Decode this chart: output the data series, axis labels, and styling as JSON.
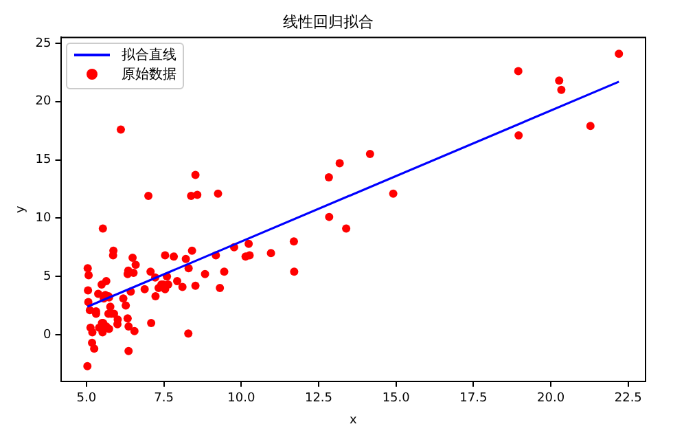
{
  "chart_data": {
    "type": "scatter",
    "title": "线性回归拟合",
    "xlabel": "x",
    "ylabel": "y",
    "legend": "top left",
    "grid": false,
    "xlim": [
      4.17,
      23.06
    ],
    "ylim": [
      -4.0,
      25.5
    ],
    "xticks": [
      {
        "value": 5,
        "label": "5.0"
      },
      {
        "value": 7.5,
        "label": "7.5"
      },
      {
        "value": 10,
        "label": "10.0"
      },
      {
        "value": 12.5,
        "label": "12.5"
      },
      {
        "value": 15,
        "label": "15.0"
      },
      {
        "value": 17.5,
        "label": "17.5"
      },
      {
        "value": 20,
        "label": "20.0"
      },
      {
        "value": 22.5,
        "label": "22.5"
      }
    ],
    "yticks": [
      0,
      5,
      10,
      15,
      20,
      25
    ],
    "series": [
      {
        "name": "拟合直线",
        "type": "line",
        "color": "#0000ff",
        "line_style": "solid",
        "x": [
          5.03,
          22.2
        ],
        "values": [
          2.4,
          21.7
        ]
      },
      {
        "name": "原始数据",
        "marker": "circle",
        "color": "#ff0000",
        "x": [
          6.11,
          5.53,
          8.52,
          7.0,
          5.86,
          8.38,
          7.48,
          8.58,
          6.49,
          5.05,
          5.71,
          14.16,
          5.73,
          8.41,
          5.64,
          5.38,
          5.13,
          6.43,
          7.07,
          6.19,
          20.27,
          5.49,
          6.33,
          5.56,
          18.95,
          12.83,
          10.96,
          13.18,
          22.2,
          5.25,
          6.59,
          9.25,
          5.89,
          8.21,
          7.93,
          8.1,
          5.61,
          12.84,
          6.35,
          5.41,
          6.88,
          11.71,
          5.77,
          7.82,
          7.09,
          5.07,
          5.8,
          11.7,
          5.54,
          7.54,
          5.31,
          7.42,
          7.6,
          6.33,
          6.36,
          6.27,
          5.64,
          9.31,
          9.45,
          8.83,
          5.18,
          21.28,
          14.91,
          18.96,
          7.22,
          8.3,
          10.24,
          5.5,
          20.34,
          10.14,
          7.33,
          6.01,
          7.23,
          5.03,
          6.55,
          7.54,
          5.04,
          10.27,
          5.11,
          5.73,
          5.19,
          6.36,
          9.77,
          6.52,
          8.52,
          9.18,
          6.0,
          5.52,
          5.06,
          5.71,
          7.64,
          5.87,
          5.31,
          8.29,
          13.39
        ],
        "values": [
          17.6,
          9.1,
          13.7,
          11.9,
          6.8,
          11.9,
          4.3,
          12.0,
          6.6,
          3.8,
          3.3,
          15.5,
          3.2,
          7.2,
          0.7,
          3.5,
          0.6,
          3.7,
          5.4,
          3.1,
          21.8,
          4.3,
          5.2,
          3.1,
          22.6,
          13.5,
          7.0,
          14.7,
          24.1,
          -1.2,
          6.0,
          12.1,
          1.8,
          6.5,
          4.6,
          4.1,
          3.4,
          10.1,
          5.5,
          0.6,
          3.9,
          5.4,
          2.4,
          6.7,
          1.0,
          5.1,
          1.8,
          8.0,
          1.0,
          6.8,
          1.8,
          4.3,
          5.0,
          1.4,
          -1.4,
          2.5,
          4.6,
          4.0,
          5.4,
          5.2,
          -0.7,
          17.9,
          12.1,
          17.1,
          4.9,
          5.7,
          7.8,
          1.0,
          21.0,
          6.7,
          4.0,
          1.3,
          3.3,
          -2.7,
          0.3,
          3.9,
          5.7,
          6.8,
          2.1,
          0.5,
          0.2,
          0.7,
          7.5,
          5.3,
          4.2,
          6.8,
          0.9,
          0.2,
          2.8,
          1.8,
          4.3,
          7.2,
          2.0,
          0.1,
          9.1
        ]
      }
    ]
  }
}
